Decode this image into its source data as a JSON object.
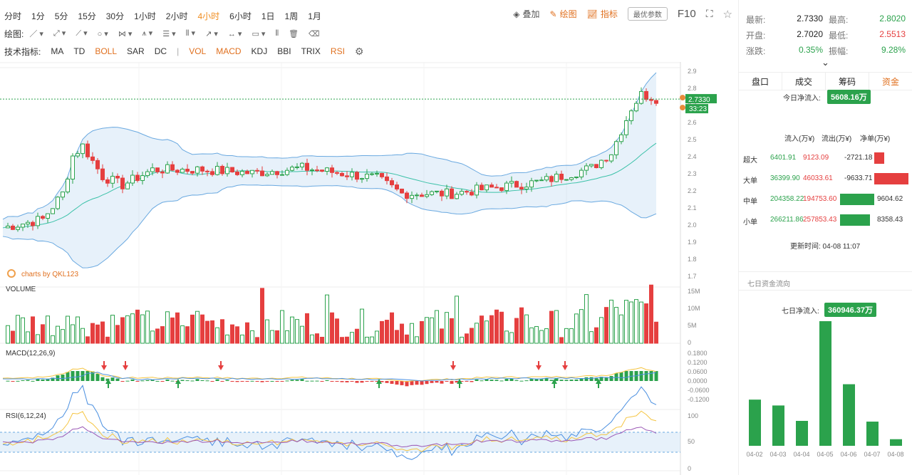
{
  "periods": [
    "分时",
    "1分",
    "5分",
    "15分",
    "30分",
    "1小时",
    "2小时",
    "4小时",
    "6小时",
    "1日",
    "1周",
    "1月"
  ],
  "active_period": "4小时",
  "toolbar": {
    "overlay": "叠加",
    "draw": "绘图",
    "indicator": "指标",
    "param": "最优参数",
    "f10": "F10"
  },
  "draw_label": "绘图:",
  "indicator_label": "技术指标:",
  "indicators": [
    {
      "name": "MA",
      "on": false
    },
    {
      "name": "TD",
      "on": false
    },
    {
      "name": "BOLL",
      "on": true
    },
    {
      "name": "SAR",
      "on": false
    },
    {
      "name": "DC",
      "on": false
    },
    {
      "name": "|",
      "on": false
    },
    {
      "name": "VOL",
      "on": true
    },
    {
      "name": "MACD",
      "on": true
    },
    {
      "name": "KDJ",
      "on": false
    },
    {
      "name": "BBI",
      "on": false
    },
    {
      "name": "TRIX",
      "on": false
    },
    {
      "name": "RSI",
      "on": true
    }
  ],
  "watermark": "charts by QKL123",
  "price_axis": [
    "2.9",
    "2.8",
    "2.7",
    "2.6",
    "2.5",
    "2.4",
    "2.3",
    "2.2",
    "2.1",
    "2.0",
    "1.9",
    "1.8",
    "1.7"
  ],
  "last_price_tag": "2.7330",
  "countdown_tag": "33:23",
  "volume": {
    "title": "VOLUME",
    "axis": [
      "15M",
      "10M",
      "5M",
      "0"
    ]
  },
  "macd": {
    "title": "MACD(12,26,9)",
    "axis": [
      "0.1800",
      "0.1200",
      "0.0600",
      "0.0000",
      "-0.0600",
      "-0.1200"
    ]
  },
  "rsi": {
    "title": "RSI(6,12,24)",
    "axis": [
      "100",
      "50",
      "0"
    ]
  },
  "stats": {
    "latest_label": "最新:",
    "latest": "2.7330",
    "high_label": "最高:",
    "high": "2.8020",
    "open_label": "开盘:",
    "open": "2.7020",
    "low_label": "最低:",
    "low": "2.5513",
    "change_label": "涨跌:",
    "change": "0.35%",
    "amp_label": "振幅:",
    "amp": "9.28%"
  },
  "tabs": [
    "盘口",
    "成交",
    "筹码",
    "资金"
  ],
  "active_tab": "资金",
  "today_flow_label": "今日净流入:",
  "today_flow": "5608.16万",
  "flow_headers": [
    "流入(万¥)",
    "流出(万¥)",
    "净单(万¥)"
  ],
  "flow_rows": [
    {
      "name": "超大",
      "in": "6401.91",
      "out": "9123.09",
      "net": "-2721.18",
      "net_val": -2721.18
    },
    {
      "name": "大单",
      "in": "36399.90",
      "out": "46033.61",
      "net": "-9633.71",
      "net_val": -9633.71
    },
    {
      "name": "中单",
      "in": "204358.22",
      "out": "194753.60",
      "net": "9604.62",
      "net_val": 9604.62
    },
    {
      "name": "小单",
      "in": "266211.86",
      "out": "257853.43",
      "net": "8358.43",
      "net_val": 8358.43
    }
  ],
  "update_time": "更新时间: 04-08 11:07",
  "seven_day_title": "七日资金流向",
  "seven_day_label": "七日净流入:",
  "seven_day_value": "360946.37万",
  "chart_data": {
    "type": "bar",
    "categories": [
      "04-02",
      "04-03",
      "04-04",
      "04-05",
      "04-06",
      "04-07",
      "04-08"
    ],
    "values": [
      63,
      55,
      34,
      170,
      84,
      33,
      9
    ]
  },
  "colors": {
    "up": "#2ba24c",
    "down": "#e53f3f",
    "accent": "#e0701f"
  }
}
